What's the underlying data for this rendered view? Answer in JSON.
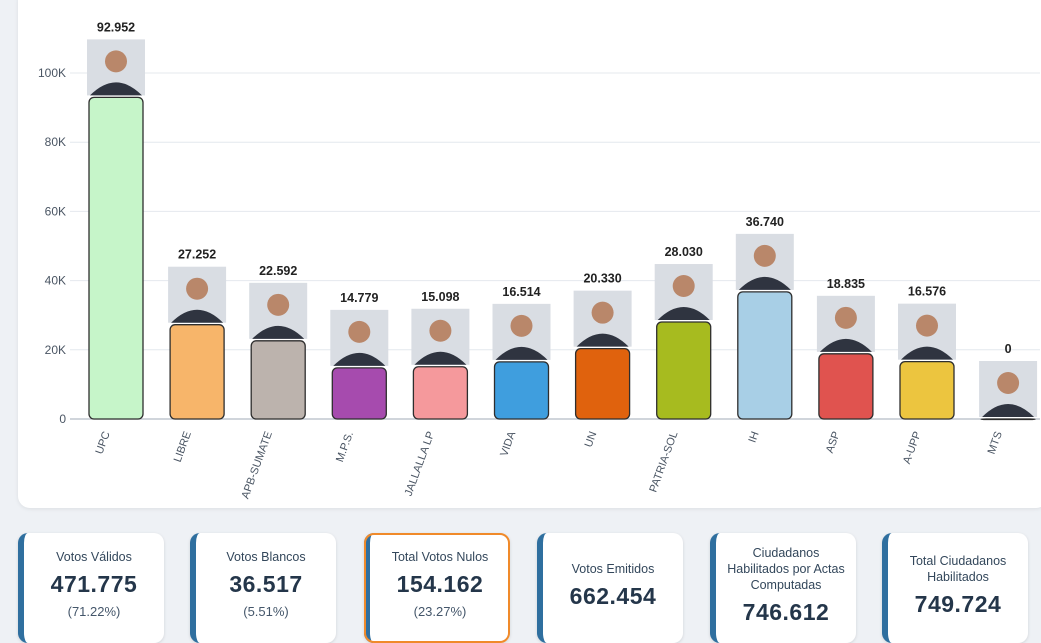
{
  "chart_data": {
    "type": "bar",
    "categories": [
      "UPC",
      "LIBRE",
      "APB-SUMATE",
      "M.P.S.",
      "JALLALLA LP",
      "VIDA",
      "UN",
      "PATRIA-SOL",
      "IH",
      "ASP",
      "A-UPP",
      "MTS"
    ],
    "values": [
      92952,
      27252,
      22592,
      14779,
      15098,
      16514,
      20330,
      28030,
      36740,
      18835,
      16576,
      0
    ],
    "value_labels": [
      "92.952",
      "27.252",
      "22.592",
      "14.779",
      "15.098",
      "16.514",
      "20.330",
      "28.030",
      "36.740",
      "18.835",
      "16.576",
      "0"
    ],
    "colors": [
      "#c6f5c9",
      "#f7b56a",
      "#bcb3ad",
      "#a64bae",
      "#f5999c",
      "#3f9ede",
      "#e0620d",
      "#a7bb1f",
      "#a8cfe6",
      "#e0534f",
      "#ecc53f",
      "#3c3c3c"
    ],
    "y_ticks": [
      0,
      20000,
      40000,
      60000,
      80000,
      100000
    ],
    "y_tick_labels": [
      "0",
      "20K",
      "40K",
      "60K",
      "80K",
      "100K"
    ],
    "ylim": [
      0,
      100000
    ],
    "grid": true,
    "title": "",
    "xlabel": "",
    "ylabel": ""
  },
  "stats": [
    {
      "label": "Votos Válidos",
      "value": "471.775",
      "pct": "(71.22%)"
    },
    {
      "label": "Votos Blancos",
      "value": "36.517",
      "pct": "(5.51%)"
    },
    {
      "label": "Total Votos Nulos",
      "value": "154.162",
      "pct": "(23.27%)"
    },
    {
      "label": "Votos Emitidos",
      "value": "662.454",
      "pct": ""
    },
    {
      "label": "Ciudadanos Habilitados por Actas Computadas",
      "value": "746.612",
      "pct": ""
    },
    {
      "label": "Total Ciudadanos Habilitados",
      "value": "749.724",
      "pct": ""
    }
  ]
}
